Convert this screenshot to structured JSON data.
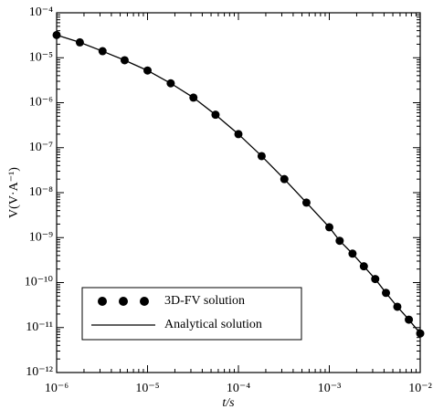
{
  "chart_data": {
    "type": "line",
    "log_x": true,
    "log_y": true,
    "x_label": "t/s",
    "y_label": "V(V·A⁻¹)",
    "x": [
      1e-06,
      1.8e-06,
      3.2e-06,
      5.6e-06,
      1e-05,
      1.8e-05,
      3.2e-05,
      5.6e-05,
      0.0001,
      0.00018,
      0.00032,
      0.00056,
      0.001,
      0.0013,
      0.0018,
      0.0024,
      0.0032,
      0.0042,
      0.0056,
      0.0075,
      0.01
    ],
    "series": [
      {
        "name": "3D-FV solution",
        "color": "#000000",
        "marker": "circle",
        "values": [
          3.2e-05,
          2.2e-05,
          1.4e-05,
          8.8e-06,
          5.2e-06,
          2.7e-06,
          1.3e-06,
          5.4e-07,
          2e-07,
          6.5e-08,
          2e-08,
          6e-09,
          1.7e-09,
          8.5e-10,
          4.4e-10,
          2.3e-10,
          1.2e-10,
          5.9e-11,
          2.9e-11,
          1.5e-11,
          7.4e-12
        ]
      },
      {
        "name": "Analytical solution",
        "color": "#000000",
        "marker": "none",
        "values": [
          3.2e-05,
          2.2e-05,
          1.4e-05,
          8.8e-06,
          5.2e-06,
          2.7e-06,
          1.3e-06,
          5.4e-07,
          2e-07,
          6.5e-08,
          2e-08,
          6e-09,
          1.7e-09,
          8.5e-10,
          4.4e-10,
          2.3e-10,
          1.2e-10,
          5.9e-11,
          2.9e-11,
          1.5e-11,
          7.4e-12
        ]
      }
    ],
    "xlim": [
      1e-06,
      0.01
    ],
    "xticks": [
      {
        "value": 1e-06,
        "label": "10⁻⁶"
      },
      {
        "value": 1e-05,
        "label": "10⁻⁵"
      },
      {
        "value": 0.0001,
        "label": "10⁻⁴"
      },
      {
        "value": 0.001,
        "label": "10⁻³"
      },
      {
        "value": 0.01,
        "label": "10⁻²"
      }
    ],
    "ylim": [
      1e-12,
      0.0001
    ],
    "yticks": [
      {
        "value": 1e-12,
        "label": "10⁻¹²"
      },
      {
        "value": 1e-11,
        "label": "10⁻¹¹"
      },
      {
        "value": 1e-10,
        "label": "10⁻¹⁰"
      },
      {
        "value": 1e-09,
        "label": "10⁻⁹"
      },
      {
        "value": 1e-08,
        "label": "10⁻⁸"
      },
      {
        "value": 1e-07,
        "label": "10⁻⁷"
      },
      {
        "value": 1e-06,
        "label": "10⁻⁶"
      },
      {
        "value": 1e-05,
        "label": "10⁻⁵"
      },
      {
        "value": 0.0001,
        "label": "10⁻⁴"
      }
    ],
    "grid": false,
    "legend": "lower left"
  }
}
